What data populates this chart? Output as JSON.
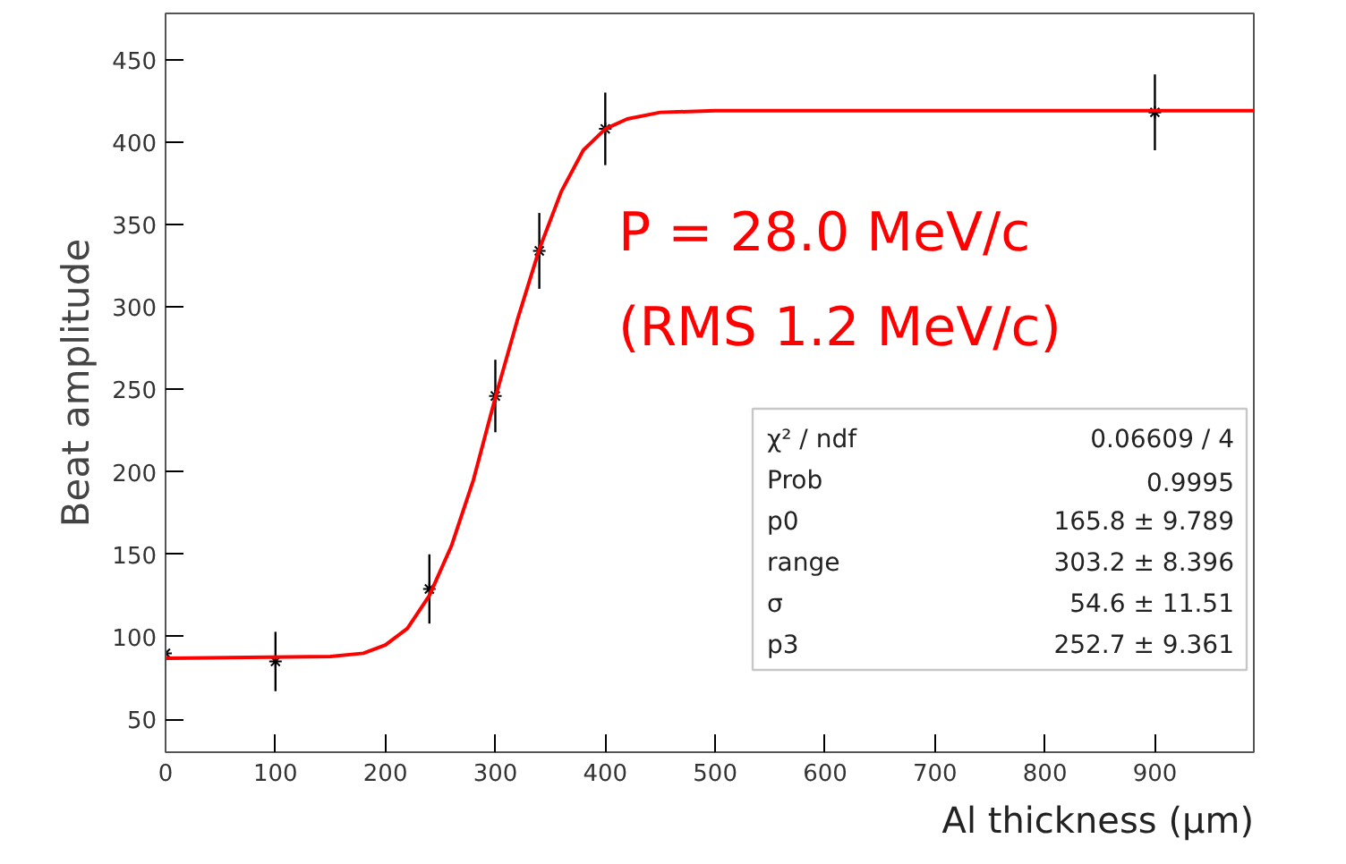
{
  "chart_data": {
    "type": "scatter",
    "xlabel": "Al thickness (µm)",
    "ylabel": "Beat amplitude",
    "xlim": [
      0,
      990
    ],
    "ylim": [
      30,
      478
    ],
    "xticks": [
      0,
      100,
      200,
      300,
      400,
      500,
      600,
      700,
      800,
      900
    ],
    "yticks": [
      50,
      100,
      150,
      200,
      250,
      300,
      350,
      400,
      450
    ],
    "grid": false,
    "series": [
      {
        "color": "#000000",
        "marker": "cross",
        "x": [
          0,
          100,
          240,
          300,
          340,
          400,
          900
        ],
        "values": [
          90,
          85,
          129,
          246,
          334,
          408,
          418
        ],
        "errors": [
          2,
          18,
          21,
          22,
          23,
          22,
          23
        ]
      },
      {
        "type": "line",
        "color": "#ff0000",
        "x": [
          0,
          150,
          180,
          200,
          220,
          240,
          260,
          280,
          300,
          320,
          340,
          360,
          380,
          400,
          420,
          450,
          500,
          990
        ],
        "values": [
          87,
          88,
          90,
          95,
          105,
          125,
          155,
          195,
          245,
          292,
          335,
          370,
          395,
          408,
          414,
          418,
          419,
          419
        ]
      }
    ],
    "annotations": [
      "P = 28.0 MeV/c",
      "(RMS 1.2 MeV/c)",
      "χ² / ndf\t0.06609 / 4",
      "Prob\t0.9995",
      "p0\t165.8 ± 9.789",
      "range\t303.2 ± 8.396",
      "σ\t54.6 ± 11.51",
      "p3\t252.7 ± 9.361"
    ]
  }
}
